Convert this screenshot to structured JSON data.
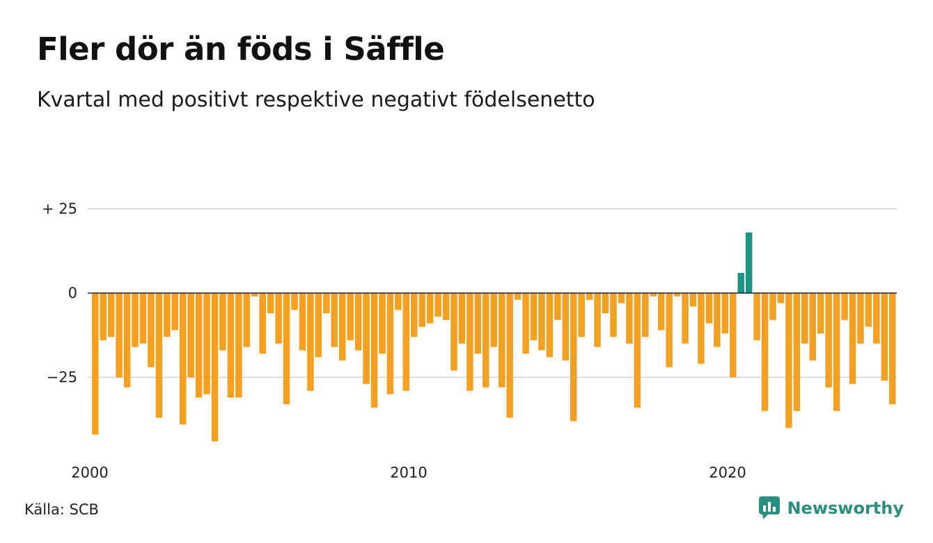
{
  "title": "Fler dör än föds i Säffle",
  "subtitle": "Kvartal med positivt respektive negativt födelsenetto",
  "source": "Källa: SCB",
  "brand": "Newsworthy",
  "colors": {
    "negative": "#f5a01e",
    "positive": "#1b9584",
    "grid": "#dddddd",
    "zero": "#222222",
    "brand": "#2a8f7e"
  },
  "chart_data": {
    "type": "bar",
    "x_start": "2000 Q1",
    "x_step": "quarter",
    "x_ticks": [
      "2000",
      "2010",
      "2020"
    ],
    "y_ticks": [
      {
        "value": 25,
        "label": "+ 25"
      },
      {
        "value": 0,
        "label": "0"
      },
      {
        "value": -25,
        "label": "−25"
      }
    ],
    "ylim": [
      -45,
      30
    ],
    "grid": true,
    "values": [
      -42,
      -14,
      -13,
      -25,
      -28,
      -16,
      -15,
      -22,
      -37,
      -13,
      -11,
      -39,
      -25,
      -31,
      -30,
      -44,
      -17,
      -31,
      -31,
      -16,
      -1,
      -18,
      -6,
      -15,
      -33,
      -5,
      -17,
      -29,
      -19,
      -6,
      -16,
      -20,
      -14,
      -17,
      -27,
      -34,
      -18,
      -30,
      -5,
      -29,
      -13,
      -10,
      -9,
      -7,
      -8,
      -23,
      -15,
      -29,
      -18,
      -28,
      -16,
      -28,
      -37,
      -2,
      -18,
      -14,
      -17,
      -19,
      -8,
      -20,
      -38,
      -13,
      -2,
      -16,
      -6,
      -13,
      -3,
      -15,
      -34,
      -13,
      -1,
      -11,
      -22,
      -1,
      -15,
      -4,
      -21,
      -9,
      -16,
      -12,
      -25,
      6,
      18,
      -14,
      -35,
      -8,
      -3,
      -40,
      -35,
      -15,
      -20,
      -12,
      -28,
      -35,
      -8,
      -27,
      -15,
      -10,
      -15,
      -26,
      -33
    ]
  }
}
